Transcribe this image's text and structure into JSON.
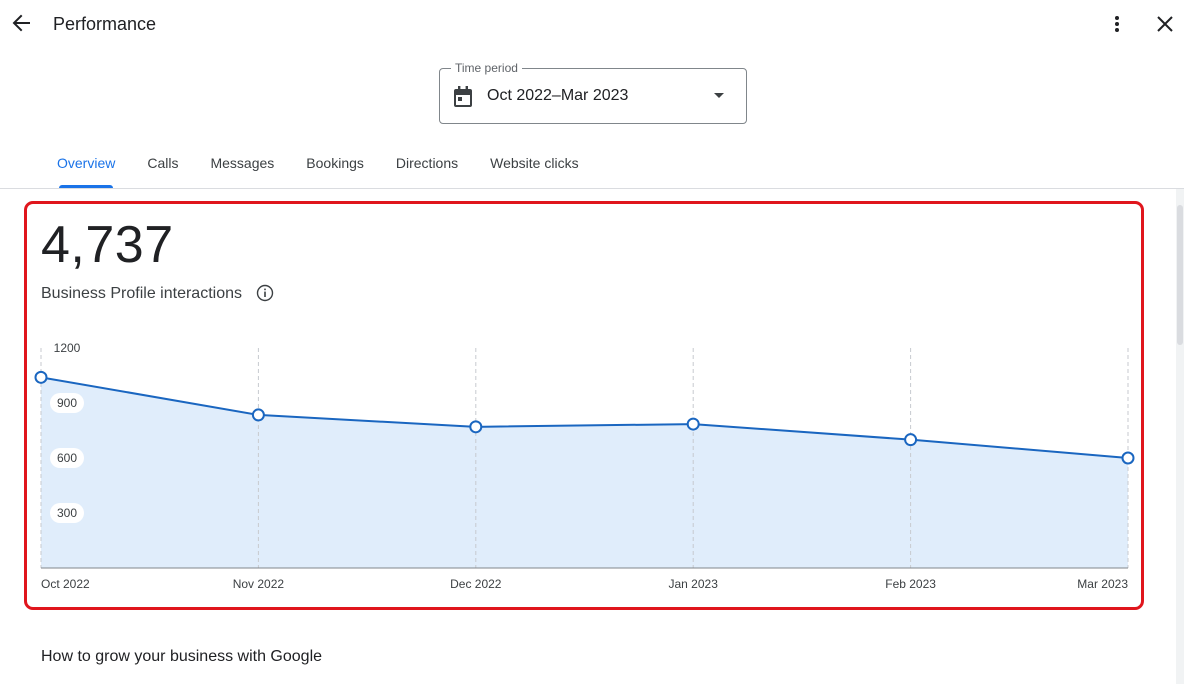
{
  "header": {
    "title": "Performance",
    "back_icon": "arrow-back-icon",
    "more_icon": "more-vert-icon",
    "close_icon": "close-icon"
  },
  "time_period": {
    "label": "Time period",
    "value": "Oct 2022–Mar 2023",
    "icon": "calendar-icon"
  },
  "tabs": [
    {
      "label": "Overview",
      "active": true
    },
    {
      "label": "Calls",
      "active": false
    },
    {
      "label": "Messages",
      "active": false
    },
    {
      "label": "Bookings",
      "active": false
    },
    {
      "label": "Directions",
      "active": false
    },
    {
      "label": "Website clicks",
      "active": false
    }
  ],
  "summary": {
    "value": "4,737",
    "label": "Business Profile interactions"
  },
  "chart_data": {
    "type": "area",
    "categories": [
      "Oct 2022",
      "Nov 2022",
      "Dec 2022",
      "Jan 2023",
      "Feb 2023",
      "Mar 2023"
    ],
    "values": [
      1040,
      835,
      770,
      785,
      700,
      600
    ],
    "yticks": [
      "1200",
      "900",
      "600",
      "300"
    ],
    "ylim": [
      0,
      1200
    ],
    "grid": "vertical dashed",
    "colors": {
      "line": "#1a66c0",
      "fill": "#e0edfb"
    }
  },
  "next_section": {
    "heading": "How to grow your business with Google"
  },
  "colors": {
    "accent": "#1a73e8",
    "highlight": "#e0161d"
  }
}
